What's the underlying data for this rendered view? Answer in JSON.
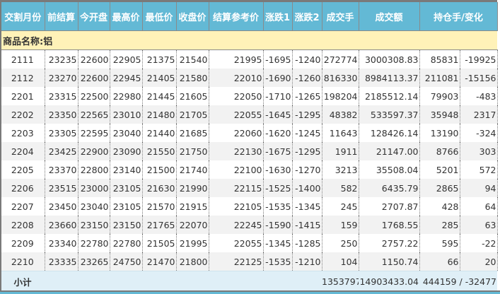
{
  "colors": {
    "header_bg": "#63b9d5",
    "group_bg": "#fff2b8",
    "subtotal_bg": "#dfeff7",
    "alt_row_bg": "#f2f2f2"
  },
  "headers": [
    "交割月份",
    "前结算",
    "今开盘",
    "最高价",
    "最低价",
    "收盘价",
    "结算参考价",
    "涨跌1",
    "涨跌2",
    "成交手",
    "成交额",
    "持仓手/变化"
  ],
  "group_label": "商品名称:铝",
  "rows": [
    [
      "2111",
      "23235",
      "22600",
      "22905",
      "21375",
      "21540",
      "21995",
      "-1695",
      "-1240",
      "272774",
      "3000308.83",
      "85831",
      "-19925"
    ],
    [
      "2112",
      "23270",
      "22600",
      "22945",
      "21405",
      "21580",
      "22010",
      "-1690",
      "-1260",
      "816330",
      "8984113.37",
      "211081",
      "-15156"
    ],
    [
      "2201",
      "23315",
      "22500",
      "22980",
      "21445",
      "21605",
      "22050",
      "-1710",
      "-1265",
      "198204",
      "2185512.14",
      "79903",
      "-483"
    ],
    [
      "2202",
      "23350",
      "22565",
      "23010",
      "21480",
      "21705",
      "22055",
      "-1645",
      "-1295",
      "48382",
      "533597.37",
      "35948",
      "2317"
    ],
    [
      "2203",
      "23305",
      "22595",
      "23040",
      "21440",
      "21685",
      "22060",
      "-1620",
      "-1245",
      "11643",
      "128426.14",
      "13190",
      "-324"
    ],
    [
      "2204",
      "23425",
      "22900",
      "23090",
      "21550",
      "21750",
      "22130",
      "-1675",
      "-1295",
      "1911",
      "21147.00",
      "8766",
      "303"
    ],
    [
      "2205",
      "23370",
      "22800",
      "23140",
      "21500",
      "21740",
      "22100",
      "-1630",
      "-1270",
      "3213",
      "35508.04",
      "5201",
      "572"
    ],
    [
      "2206",
      "23515",
      "23000",
      "23105",
      "21630",
      "21990",
      "22115",
      "-1525",
      "-1400",
      "582",
      "6435.79",
      "2865",
      "94"
    ],
    [
      "2207",
      "23450",
      "23040",
      "23105",
      "21570",
      "21915",
      "22105",
      "-1535",
      "-1345",
      "245",
      "2707.87",
      "428",
      "64"
    ],
    [
      "2208",
      "23660",
      "23150",
      "23150",
      "21765",
      "22070",
      "22245",
      "-1590",
      "-1415",
      "159",
      "1768.55",
      "285",
      "63"
    ],
    [
      "2209",
      "23340",
      "22780",
      "22780",
      "21505",
      "21995",
      "22055",
      "-1345",
      "-1285",
      "250",
      "2757.22",
      "595",
      "-22"
    ],
    [
      "2210",
      "23335",
      "23265",
      "24750",
      "21470",
      "21800",
      "22125",
      "-1535",
      "-1210",
      "104",
      "1150.74",
      "66",
      "20"
    ]
  ],
  "subtotal": {
    "label": "小计",
    "volume": "1353797",
    "turnover": "14903433.04",
    "open_interest": "444159 / -32477"
  }
}
